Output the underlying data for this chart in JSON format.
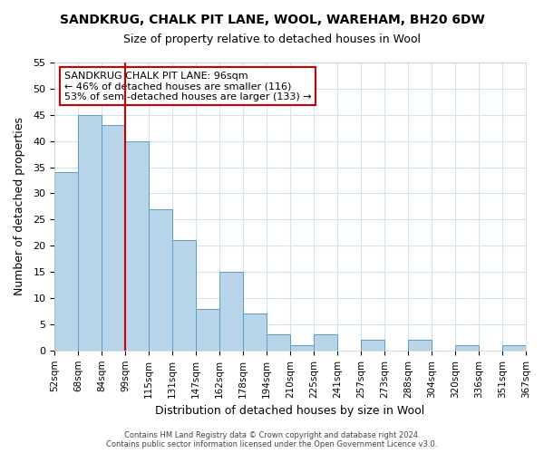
{
  "title": "SANDKRUG, CHALK PIT LANE, WOOL, WAREHAM, BH20 6DW",
  "subtitle": "Size of property relative to detached houses in Wool",
  "xlabel": "Distribution of detached houses by size in Wool",
  "ylabel": "Number of detached properties",
  "bar_values": [
    34,
    45,
    43,
    40,
    27,
    21,
    8,
    15,
    7,
    3,
    1,
    3,
    0,
    2,
    0,
    2,
    0,
    1,
    0,
    1
  ],
  "bar_labels": [
    "52sqm",
    "68sqm",
    "84sqm",
    "99sqm",
    "115sqm",
    "131sqm",
    "147sqm",
    "162sqm",
    "178sqm",
    "194sqm",
    "210sqm",
    "225sqm",
    "241sqm",
    "257sqm",
    "273sqm",
    "288sqm",
    "304sqm",
    "320sqm",
    "336sqm",
    "351sqm",
    "367sqm"
  ],
  "bar_color": "#b8d4e8",
  "bar_edge_color": "#5a9dc5",
  "ylim": [
    0,
    55
  ],
  "yticks": [
    0,
    5,
    10,
    15,
    20,
    25,
    30,
    35,
    40,
    45,
    50,
    55
  ],
  "red_line_index": 3,
  "annotation_title": "SANDKRUG CHALK PIT LANE: 96sqm",
  "annotation_line1": "← 46% of detached houses are smaller (116)",
  "annotation_line2": "53% of semi-detached houses are larger (133) →",
  "annotation_box_color": "#ffffff",
  "annotation_box_edge_color": "#cc0000",
  "red_line_color": "#cc0000",
  "footer1": "Contains HM Land Registry data © Crown copyright and database right 2024.",
  "footer2": "Contains public sector information licensed under the Open Government Licence v3.0.",
  "background_color": "#ffffff",
  "grid_color": "#d0e4f0"
}
